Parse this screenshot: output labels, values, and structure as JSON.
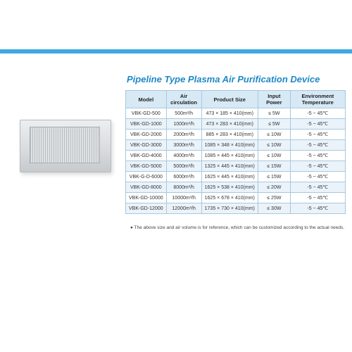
{
  "title": "Pipeline Type Plasma Air Purification Device",
  "colors": {
    "topbar": "#3ea9e0",
    "title": "#1e88c7",
    "th_bg": "#d6e9f5",
    "border": "#a8c8dd",
    "row_alt": "#eaf3fa",
    "row_base": "#ffffff"
  },
  "table": {
    "columns": [
      "Model",
      "Air circulation",
      "Product Size",
      "Input Power",
      "Environment Temperature"
    ],
    "rows": [
      [
        "VBK-GD-500",
        "500m³/h",
        "473 × 185 × 410(mm)",
        "≤ 5W",
        "-5 ~ 45℃"
      ],
      [
        "VBK-GD-1000",
        "1000m³/h",
        "473 × 283 × 410(mm)",
        "≤ 5W",
        "-5 ~ 45℃"
      ],
      [
        "VBK-GD-2000",
        "2000m³/h",
        "885 × 283 × 410(mm)",
        "≤ 10W",
        "-5 ~ 45℃"
      ],
      [
        "VBK-GD-3000",
        "3000m³/h",
        "1085 × 348 × 410(mm)",
        "≤ 10W",
        "-5 ~ 45℃"
      ],
      [
        "VBK-GD-4000",
        "4000m³/h",
        "1085 × 445 × 410(mm)",
        "≤ 10W",
        "-5 ~ 45℃"
      ],
      [
        "VBK-GD-5000",
        "5000m³/h",
        "1325 × 445 × 410(mm)",
        "≤ 15W",
        "-5 ~ 45℃"
      ],
      [
        "VBK-G-D-6000",
        "6000m³/h",
        "1625 × 445 × 410(mm)",
        "≤ 15W",
        "-5 ~ 45℃"
      ],
      [
        "VBK-GD-8000",
        "8000m³/h",
        "1625 × 538 × 410(mm)",
        "≤ 20W",
        "-5 ~ 45℃"
      ],
      [
        "VBK-GD-10000",
        "10000m³/h",
        "1625 × 678 × 410(mm)",
        "≤ 25W",
        "-5 ~ 45℃"
      ],
      [
        "VBK-GD-12000",
        "12000m³/h",
        "1735 × 730 × 410(mm)",
        "≤ 30W",
        "-5 ~ 45℃"
      ]
    ]
  },
  "footnote": "● The above size and air volume is for reference, which can be customized according to the actual needs."
}
